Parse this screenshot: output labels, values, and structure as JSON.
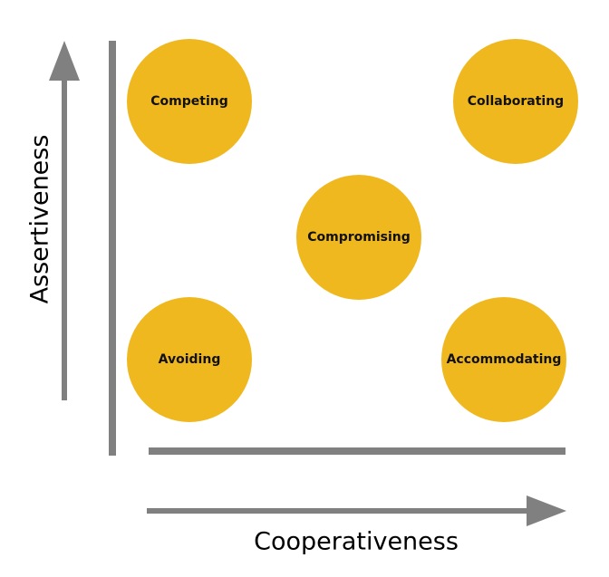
{
  "colors": {
    "circle_fill": "#f0b81f",
    "axis_color": "#808080",
    "text_color": "#111111"
  },
  "axes": {
    "y_label": "Assertiveness",
    "x_label": "Cooperativeness"
  },
  "styles": [
    {
      "label": "Competing"
    },
    {
      "label": "Collaborating"
    },
    {
      "label": "Compromising"
    },
    {
      "label": "Avoiding"
    },
    {
      "label": "Accommodating"
    }
  ]
}
